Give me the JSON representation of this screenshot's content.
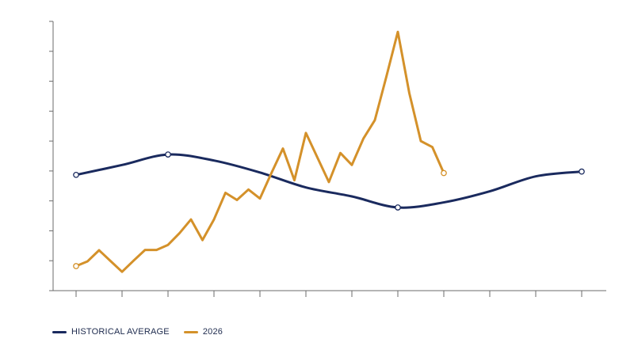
{
  "chart_data": {
    "type": "line",
    "title": "",
    "xlabel": "",
    "ylabel": "",
    "x_domain": [
      0,
      11.75
    ],
    "x_ticks": [
      0,
      1,
      2,
      3,
      4,
      5,
      6,
      7,
      8,
      9,
      10,
      11
    ],
    "y_domain": [
      0,
      9
    ],
    "y_ticks": [
      0,
      1,
      2,
      3,
      4,
      5,
      6,
      7,
      8,
      9
    ],
    "grid": false,
    "legend_position": "bottom-left",
    "series": [
      {
        "name": "HISTORICAL AVERAGE",
        "color": "#1a2a5e",
        "smooth": true,
        "markers_at": [
          0,
          2,
          7,
          11
        ],
        "points": [
          [
            0,
            3.87
          ],
          [
            1,
            4.2
          ],
          [
            2,
            4.55
          ],
          [
            3,
            4.35
          ],
          [
            4,
            3.95
          ],
          [
            5,
            3.45
          ],
          [
            6,
            3.15
          ],
          [
            7,
            2.78
          ],
          [
            8,
            2.95
          ],
          [
            9,
            3.32
          ],
          [
            10,
            3.82
          ],
          [
            11,
            3.98
          ]
        ]
      },
      {
        "name": "2026",
        "color": "#d4912a",
        "smooth": false,
        "markers_at": [
          0,
          32
        ],
        "points": [
          [
            0,
            0.82
          ],
          [
            0.25,
            0.98
          ],
          [
            0.5,
            1.35
          ],
          [
            0.75,
            0.99
          ],
          [
            1,
            0.63
          ],
          [
            1.25,
            1.0
          ],
          [
            1.5,
            1.36
          ],
          [
            1.75,
            1.36
          ],
          [
            2,
            1.53
          ],
          [
            2.25,
            1.92
          ],
          [
            2.5,
            2.38
          ],
          [
            2.75,
            1.69
          ],
          [
            3,
            2.38
          ],
          [
            3.25,
            3.27
          ],
          [
            3.5,
            3.03
          ],
          [
            3.75,
            3.38
          ],
          [
            4,
            3.08
          ],
          [
            4.25,
            3.93
          ],
          [
            4.5,
            4.75
          ],
          [
            4.75,
            3.69
          ],
          [
            5,
            5.27
          ],
          [
            5.25,
            4.45
          ],
          [
            5.5,
            3.63
          ],
          [
            5.75,
            4.6
          ],
          [
            6,
            4.2
          ],
          [
            6.25,
            5.08
          ],
          [
            6.5,
            5.7
          ],
          [
            6.75,
            7.15
          ],
          [
            7,
            8.65
          ],
          [
            7.25,
            6.6
          ],
          [
            7.5,
            5.0
          ],
          [
            7.75,
            4.8
          ],
          [
            8,
            3.93
          ]
        ]
      }
    ]
  }
}
